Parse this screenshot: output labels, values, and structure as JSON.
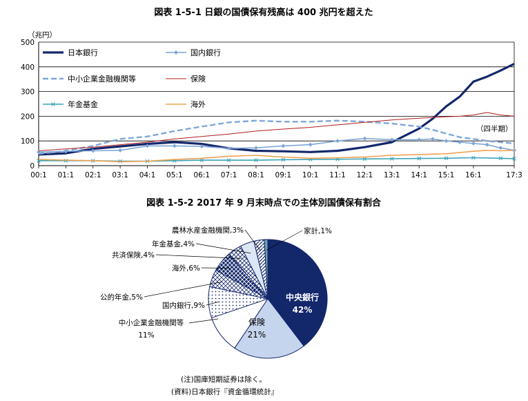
{
  "chart_data": [
    {
      "type": "line",
      "title": "図表 1-5-1 日銀の国債保有残高は 400 兆円を超えた",
      "ylabel": "（兆円）",
      "period_note": "（四半期）",
      "ylim": [
        0,
        500
      ],
      "yticks": [
        "0",
        "100",
        "200",
        "300",
        "400",
        "500"
      ],
      "yticks_values": [
        0,
        100,
        200,
        300,
        400,
        500
      ],
      "grid": true,
      "legend_position": "top-left",
      "x_start_year": 2000,
      "x_tick_labels": [
        "00:1",
        "01:1",
        "02:1",
        "03:1",
        "04:1",
        "05:1",
        "06:1",
        "07:1",
        "08:1",
        "09:1",
        "10:1",
        "11:1",
        "12:1",
        "13:1",
        "14:1",
        "15:1",
        "16:1",
        "17:3"
      ],
      "x_tick_quarters": [
        0,
        4,
        8,
        12,
        16,
        20,
        24,
        28,
        32,
        36,
        40,
        44,
        48,
        52,
        56,
        60,
        64,
        70
      ],
      "series": [
        {
          "name": "日本銀行",
          "color": "#13276b",
          "style": "bold",
          "marker": "none",
          "points": [
            [
              0,
              45
            ],
            [
              4,
              50
            ],
            [
              8,
              68
            ],
            [
              12,
              78
            ],
            [
              16,
              88
            ],
            [
              20,
              95
            ],
            [
              24,
              88
            ],
            [
              28,
              70
            ],
            [
              32,
              60
            ],
            [
              36,
              58
            ],
            [
              40,
              55
            ],
            [
              44,
              60
            ],
            [
              48,
              75
            ],
            [
              52,
              95
            ],
            [
              56,
              150
            ],
            [
              58,
              190
            ],
            [
              60,
              240
            ],
            [
              62,
              280
            ],
            [
              64,
              340
            ],
            [
              66,
              360
            ],
            [
              68,
              385
            ],
            [
              70,
              412
            ]
          ]
        },
        {
          "name": "国内銀行",
          "color": "#7ea6d8",
          "style": "solid",
          "marker": "diamond",
          "points": [
            [
              0,
              55
            ],
            [
              4,
              58
            ],
            [
              8,
              60
            ],
            [
              12,
              62
            ],
            [
              16,
              80
            ],
            [
              20,
              80
            ],
            [
              24,
              78
            ],
            [
              28,
              70
            ],
            [
              32,
              72
            ],
            [
              36,
              80
            ],
            [
              40,
              85
            ],
            [
              44,
              100
            ],
            [
              48,
              110
            ],
            [
              52,
              105
            ],
            [
              56,
              105
            ],
            [
              58,
              108
            ],
            [
              60,
              100
            ],
            [
              62,
              95
            ],
            [
              64,
              90
            ],
            [
              66,
              85
            ],
            [
              68,
              72
            ],
            [
              70,
              62
            ]
          ]
        },
        {
          "name": "中小企業金融機関等",
          "color": "#7ea6d8",
          "style": "dashed",
          "marker": "none",
          "points": [
            [
              0,
              48
            ],
            [
              4,
              60
            ],
            [
              8,
              80
            ],
            [
              12,
              108
            ],
            [
              16,
              118
            ],
            [
              20,
              140
            ],
            [
              24,
              158
            ],
            [
              28,
              175
            ],
            [
              32,
              182
            ],
            [
              36,
              178
            ],
            [
              40,
              178
            ],
            [
              44,
              182
            ],
            [
              48,
              178
            ],
            [
              52,
              170
            ],
            [
              56,
              158
            ],
            [
              58,
              145
            ],
            [
              60,
              130
            ],
            [
              62,
              115
            ],
            [
              64,
              108
            ],
            [
              66,
              100
            ],
            [
              68,
              95
            ],
            [
              70,
              90
            ]
          ]
        },
        {
          "name": "保険",
          "color": "#b01c1c",
          "style": "thin",
          "marker": "none",
          "points": [
            [
              0,
              60
            ],
            [
              4,
              68
            ],
            [
              8,
              75
            ],
            [
              12,
              85
            ],
            [
              16,
              95
            ],
            [
              20,
              108
            ],
            [
              24,
              118
            ],
            [
              28,
              128
            ],
            [
              32,
              140
            ],
            [
              36,
              148
            ],
            [
              40,
              155
            ],
            [
              44,
              165
            ],
            [
              48,
              175
            ],
            [
              52,
              185
            ],
            [
              56,
              192
            ],
            [
              58,
              195
            ],
            [
              60,
              198
            ],
            [
              62,
              200
            ],
            [
              64,
              205
            ],
            [
              66,
              215
            ],
            [
              68,
              205
            ],
            [
              70,
              200
            ]
          ]
        },
        {
          "name": "年金基金",
          "color": "#3aa3b8",
          "style": "solid",
          "marker": "x",
          "points": [
            [
              0,
              20
            ],
            [
              4,
              20
            ],
            [
              8,
              20
            ],
            [
              12,
              18
            ],
            [
              16,
              18
            ],
            [
              20,
              20
            ],
            [
              24,
              22
            ],
            [
              28,
              22
            ],
            [
              32,
              22
            ],
            [
              36,
              24
            ],
            [
              40,
              25
            ],
            [
              44,
              26
            ],
            [
              48,
              27
            ],
            [
              52,
              28
            ],
            [
              56,
              29
            ],
            [
              60,
              30
            ],
            [
              64,
              32
            ],
            [
              68,
              30
            ],
            [
              70,
              28
            ]
          ]
        },
        {
          "name": "海外",
          "color": "#f0a050",
          "style": "solid",
          "marker": "none",
          "points": [
            [
              0,
              25
            ],
            [
              4,
              22
            ],
            [
              8,
              20
            ],
            [
              12,
              16
            ],
            [
              16,
              18
            ],
            [
              20,
              25
            ],
            [
              24,
              30
            ],
            [
              28,
              38
            ],
            [
              32,
              42
            ],
            [
              36,
              35
            ],
            [
              40,
              30
            ],
            [
              44,
              32
            ],
            [
              48,
              35
            ],
            [
              52,
              42
            ],
            [
              56,
              45
            ],
            [
              60,
              48
            ],
            [
              64,
              58
            ],
            [
              66,
              62
            ],
            [
              68,
              60
            ],
            [
              70,
              62
            ]
          ]
        }
      ]
    },
    {
      "type": "pie",
      "title": "図表 1-5-2  2017 年 9 月末時点での主体別国債保有割合",
      "slices": [
        {
          "name": "中央銀行",
          "value": 42,
          "label": "中央銀行",
          "value_label": "42%",
          "color": "#13276b",
          "pattern": "solid"
        },
        {
          "name": "保険",
          "value": 21,
          "label": "保険",
          "value_label": "21%",
          "color": "#c6d5ee",
          "pattern": "solid"
        },
        {
          "name": "中小企業金融機関等",
          "value": 11,
          "label": "中小企業金融機関等",
          "value_label": "11%",
          "color": "#ffffff",
          "pattern": "solid"
        },
        {
          "name": "国内銀行",
          "value": 9,
          "label": "国内銀行,9%",
          "color": "#ffffff",
          "pattern": "dots"
        },
        {
          "name": "公的年金",
          "value": 5,
          "label": "公的年金,5%",
          "color": "#ffffff",
          "pattern": "diamonds"
        },
        {
          "name": "海外",
          "value": 6,
          "label": "海外,6%",
          "color": "#13276b",
          "pattern": "xwhite"
        },
        {
          "name": "共済保険",
          "value": 4,
          "label": "共済保険,4%",
          "color": "#ffffff",
          "pattern": "cross"
        },
        {
          "name": "年金基金",
          "value": 4,
          "label": "年金基金,4%",
          "color": "#dce6f4",
          "pattern": "solid"
        },
        {
          "name": "農林水産金融機関",
          "value": 3,
          "label": "農林水産金融機関,3%",
          "color": "#ffffff",
          "pattern": "diag"
        },
        {
          "name": "家計",
          "value": 1,
          "label": "家計,1%",
          "color": "#6fa0a8",
          "pattern": "solid"
        }
      ],
      "notes": [
        "(注)国庫短期証券は除く。",
        "(資料)日本銀行『資金循環統計』"
      ]
    }
  ]
}
